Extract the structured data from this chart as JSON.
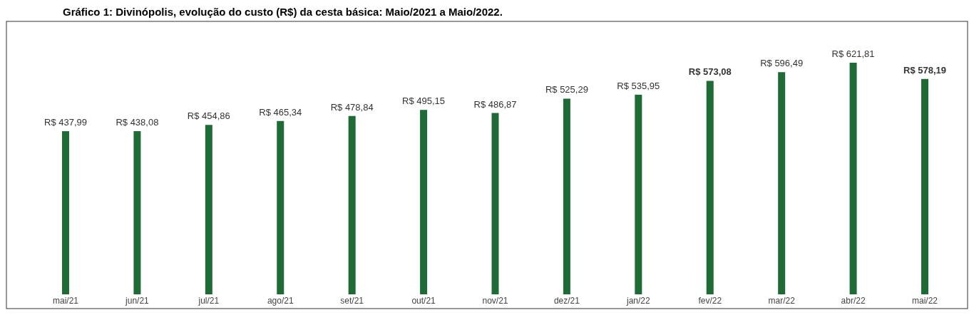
{
  "chart_data": {
    "type": "bar",
    "title": "Gráfico 1: Divinópolis, evolução do custo (R$) da cesta básica: Maio/2021 a Maio/2022.",
    "categories": [
      "mai/21",
      "jun/21",
      "jul/21",
      "ago/21",
      "set/21",
      "out/21",
      "nov/21",
      "dez/21",
      "jan/22",
      "fev/22",
      "mar/22",
      "abr/22",
      "mai/22"
    ],
    "values": [
      437.99,
      438.08,
      454.86,
      465.34,
      478.84,
      495.15,
      486.87,
      525.29,
      535.95,
      573.08,
      596.49,
      621.81,
      578.19
    ],
    "value_labels": [
      "R$ 437,99",
      "R$ 438,08",
      "R$ 454,86",
      "R$ 465,34",
      "R$ 478,84",
      "R$ 495,15",
      "R$ 486,87",
      "R$ 525,29",
      "R$ 535,95",
      "R$ 573,08",
      "R$ 596,49",
      "R$ 621,81",
      "R$ 578,19"
    ],
    "color": "#1e6b35"
  }
}
